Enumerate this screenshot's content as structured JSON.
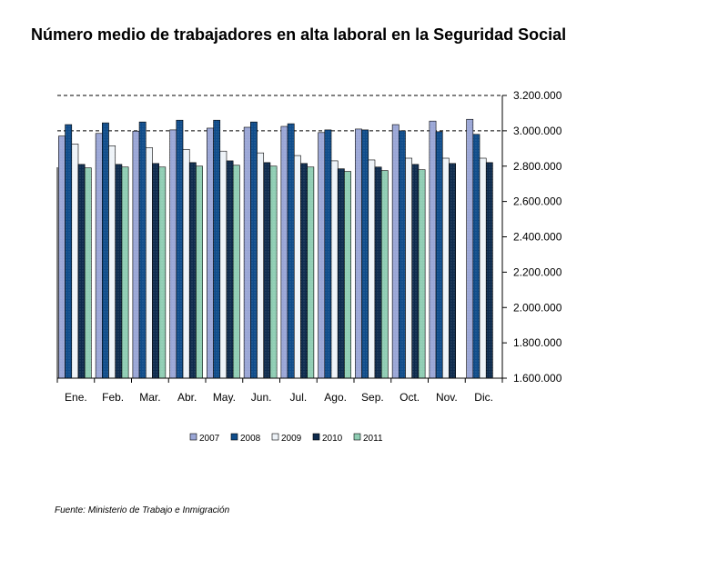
{
  "title": "Número medio de trabajadores en alta laboral en la Seguridad Social",
  "source": "Fuente: Ministerio de Trabajo e Inmigración",
  "colors": {
    "2007": "#9aa6d6",
    "2008": "#0f4c8a",
    "2009": "#eef3f8",
    "2010": "#0e2b4d",
    "2011": "#8fcdb3"
  },
  "chart_data": {
    "type": "bar",
    "title": "Número medio de trabajadores en alta laboral en la Seguridad Social",
    "xlabel": "",
    "ylabel": "",
    "ylim": [
      1600000,
      3200000
    ],
    "y_ticks": [
      1600000,
      1800000,
      2000000,
      2200000,
      2400000,
      2600000,
      2800000,
      3000000,
      3200000
    ],
    "y_tick_labels": [
      "1.600.000",
      "1.800.000",
      "2.000.000",
      "2.200.000",
      "2.400.000",
      "2.600.000",
      "2.800.000",
      "3.000.000",
      "3.200.000"
    ],
    "gridlines": [
      3000000,
      3200000
    ],
    "legend_position": "bottom",
    "categories": [
      "Ene.",
      "Feb.",
      "Mar.",
      "Abr.",
      "May.",
      "Jun.",
      "Jul.",
      "Ago.",
      "Sep.",
      "Oct.",
      "Nov.",
      "Dic."
    ],
    "series": [
      {
        "name": "2007",
        "values": [
          2970000,
          2985000,
          2998000,
          3005000,
          3015000,
          3020000,
          3025000,
          2990000,
          3010000,
          3035000,
          3055000,
          3065000
        ]
      },
      {
        "name": "2008",
        "values": [
          3035000,
          3045000,
          3050000,
          3060000,
          3060000,
          3050000,
          3040000,
          3005000,
          3005000,
          3000000,
          2995000,
          2980000
        ]
      },
      {
        "name": "2009",
        "values": [
          2925000,
          2915000,
          2905000,
          2895000,
          2885000,
          2875000,
          2860000,
          2830000,
          2835000,
          2845000,
          2845000,
          2845000
        ]
      },
      {
        "name": "2010",
        "values": [
          2810000,
          2810000,
          2815000,
          2820000,
          2830000,
          2820000,
          2815000,
          2785000,
          2795000,
          2810000,
          2815000,
          2820000
        ]
      },
      {
        "name": "2011",
        "values": [
          2790000,
          2795000,
          2795000,
          2800000,
          2805000,
          2800000,
          2795000,
          2770000,
          2775000,
          2780000,
          null,
          null
        ]
      }
    ]
  }
}
